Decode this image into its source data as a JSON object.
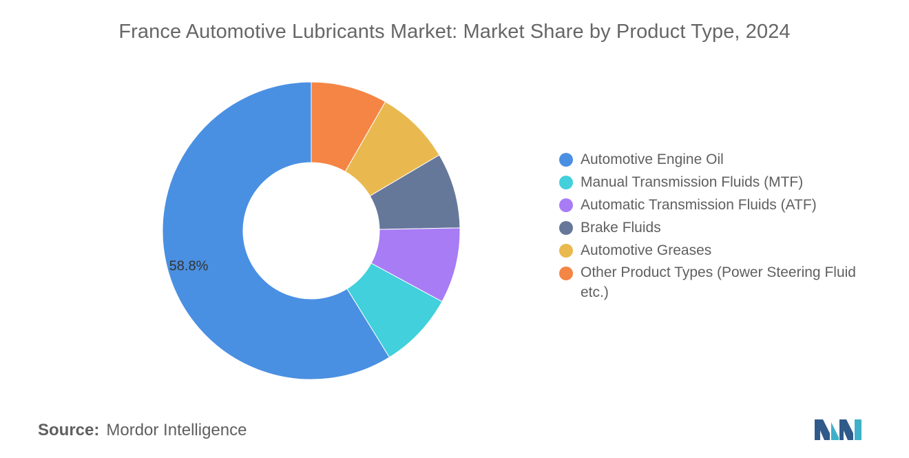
{
  "chart_data": {
    "type": "pie",
    "title": "France Automotive Lubricants Market: Market Share by Product Type, 2024",
    "donut": true,
    "categories": [
      "Automotive Engine Oil",
      "Manual Transmission Fluids (MTF)",
      "Automatic Transmission Fluids (ATF)",
      "Brake Fluids",
      "Automotive Greases",
      "Other Product Types (Power Steering Fluid etc.)"
    ],
    "values": [
      58.8,
      8.3,
      8.2,
      8.2,
      8.2,
      8.3
    ],
    "colors": [
      "#4a90e2",
      "#41d0dc",
      "#a77cf5",
      "#66789a",
      "#e9b94f",
      "#f48545"
    ],
    "data_labels": [
      "58.8%",
      "",
      "",
      "",
      "",
      ""
    ],
    "legend_position": "right"
  },
  "source": {
    "label": "Source:",
    "value": "Mordor Intelligence"
  },
  "logo": {
    "name": "mordor-intelligence-logo",
    "colors": [
      "#2f5a8a",
      "#3fb0c9"
    ]
  }
}
